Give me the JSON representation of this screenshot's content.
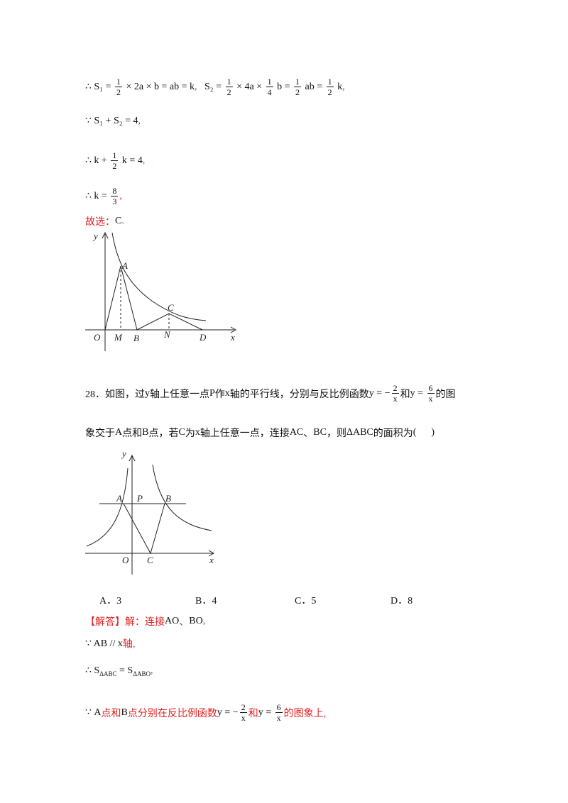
{
  "lines": [
    {
      "parts": [
        "∴ S₁ = ",
        {
          "num": "1",
          "den": "2"
        },
        " × 2a × b = ab = k",
        {
          "text": ",",
          "color": "#e02020"
        },
        "   S₂ = ",
        {
          "num": "1",
          "den": "2"
        },
        " × 4a × ",
        {
          "num": "1",
          "den": "4"
        },
        " b = ",
        {
          "num": "1",
          "den": "2"
        },
        " ab = ",
        {
          "num": "1",
          "den": "2"
        },
        " k",
        {
          "text": ",",
          "color": "#e02020"
        }
      ]
    },
    {
      "parts": [
        "∵ S₁ + S₂ = 4",
        {
          "text": ",",
          "color": "#e02020"
        }
      ]
    },
    {
      "parts": [
        "∴ k + ",
        {
          "num": "1",
          "den": "2"
        },
        " k = 4",
        {
          "text": ",",
          "color": "#e02020"
        }
      ]
    },
    {
      "parts": [
        "∴ k = ",
        {
          "num": "8",
          "den": "3"
        },
        {
          "text": ",",
          "color": "#e02020"
        }
      ]
    },
    {
      "parts": [
        {
          "text": "故选：",
          "color": "#e02020"
        },
        "C",
        {
          "text": ".",
          "color": "#e02020"
        }
      ]
    },
    {
      "parts": [
        "28．如图，过",
        "y",
        "轴上任意一点",
        "P",
        "作",
        "x",
        "轴的平行线，分别与反比例函数",
        "y = −",
        {
          "num": "2",
          "den": "x"
        },
        "和",
        "y = ",
        {
          "num": "6",
          "den": "x"
        },
        "的图"
      ]
    },
    {
      "parts": [
        "象交于",
        "A",
        "点和",
        "B",
        "点，若",
        "C",
        "为",
        "x",
        "轴上任意一点，连接",
        "AC",
        "、",
        "BC",
        "，则",
        "ΔABC",
        "的面积为",
        "(      )"
      ]
    },
    {
      "parts": [
        {
          "text": "【解答】解：连接",
          "color": "#e02020"
        },
        "AO",
        {
          "text": "、",
          "color": "#e02020"
        },
        "BO",
        {
          "text": ",",
          "color": "#e02020"
        }
      ]
    },
    {
      "parts": [
        "∵ AB // x",
        {
          "text": "轴,",
          "color": "#e02020"
        }
      ]
    },
    {
      "parts": [
        "∴ S",
        {
          "sub": "ΔABC"
        },
        " = S",
        {
          "sub": "ΔABO"
        },
        {
          "text": ",",
          "color": "#e02020"
        }
      ]
    },
    {
      "parts": [
        "∵ ",
        "A",
        {
          "text": "点和",
          "color": "#e02020"
        },
        "B",
        {
          "text": "点分别在反比例函数",
          "color": "#e02020"
        },
        "y = −",
        {
          "num": "2",
          "den": "x"
        },
        {
          "text": "和",
          "color": "#e02020"
        },
        "y = ",
        {
          "num": "6",
          "den": "x"
        },
        {
          "text": "的图象上,",
          "color": "#e02020"
        }
      ]
    }
  ],
  "figure1": {
    "labels": [
      "y",
      "A",
      "C",
      "O",
      "M",
      "B",
      "N",
      "D",
      "x"
    ]
  },
  "figure2": {
    "labels": [
      "y",
      "A",
      "P",
      "B",
      "O",
      "C",
      "x"
    ]
  },
  "options": [
    "A．3",
    "B．4",
    "C．5",
    "D．8"
  ]
}
